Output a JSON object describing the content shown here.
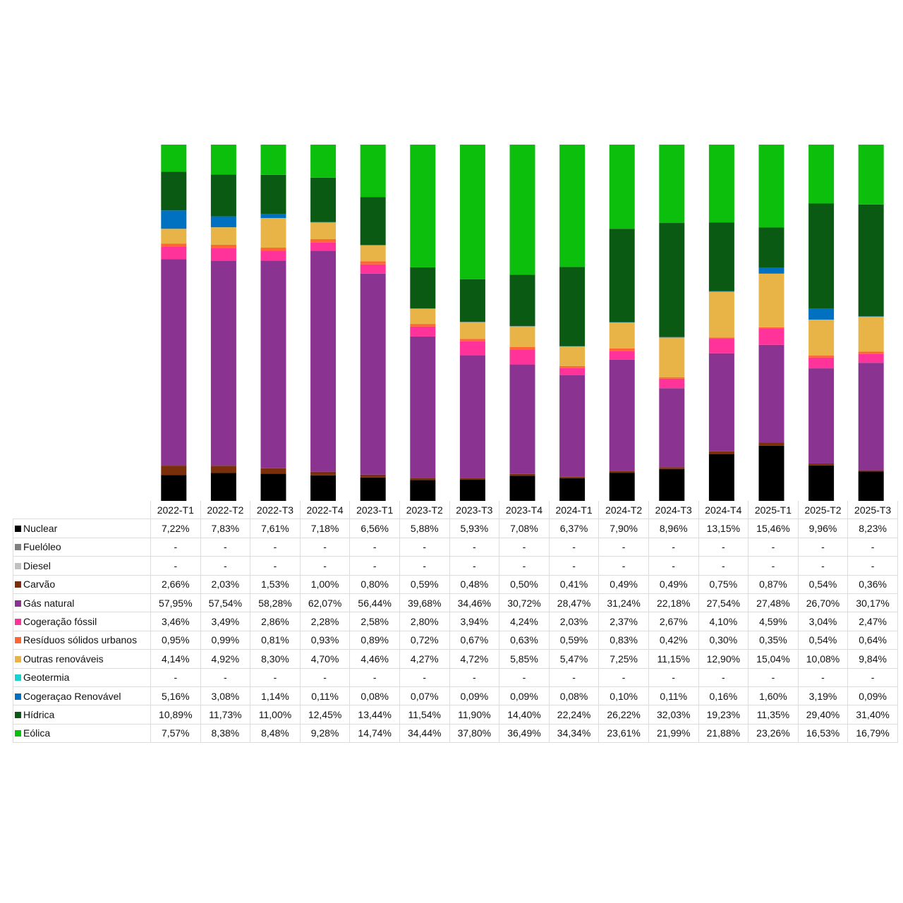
{
  "chart_data": {
    "type": "bar",
    "stacked": true,
    "normalized_100": true,
    "legend": "table-left",
    "categories": [
      "2022-T1",
      "2022-T2",
      "2022-T3",
      "2022-T4",
      "2023-T1",
      "2023-T2",
      "2023-T3",
      "2023-T4",
      "2024-T1",
      "2024-T2",
      "2024-T3",
      "2024-T4",
      "2025-T1",
      "2025-T2",
      "2025-T3"
    ],
    "missing_symbol": "-",
    "series": [
      {
        "name": "Nuclear",
        "color": "#000000",
        "values": [
          7.22,
          7.83,
          7.61,
          7.18,
          6.56,
          5.88,
          5.93,
          7.08,
          6.37,
          7.9,
          8.96,
          13.15,
          15.46,
          9.96,
          8.23
        ]
      },
      {
        "name": "Fuelóleo",
        "color": "#808080",
        "values": [
          null,
          null,
          null,
          null,
          null,
          null,
          null,
          null,
          null,
          null,
          null,
          null,
          null,
          null,
          null
        ]
      },
      {
        "name": "Diesel",
        "color": "#c0c0c0",
        "values": [
          null,
          null,
          null,
          null,
          null,
          null,
          null,
          null,
          null,
          null,
          null,
          null,
          null,
          null,
          null
        ]
      },
      {
        "name": "Carvão",
        "color": "#7a2e0a",
        "values": [
          2.66,
          2.03,
          1.53,
          1.0,
          0.8,
          0.59,
          0.48,
          0.5,
          0.41,
          0.49,
          0.49,
          0.75,
          0.87,
          0.54,
          0.36
        ]
      },
      {
        "name": "Gás natural",
        "color": "#8b3391",
        "values": [
          57.95,
          57.54,
          58.28,
          62.07,
          56.44,
          39.68,
          34.46,
          30.72,
          28.47,
          31.24,
          22.18,
          27.54,
          27.48,
          26.7,
          30.17
        ]
      },
      {
        "name": "Cogeração fóssil",
        "color": "#ff3399",
        "values": [
          3.46,
          3.49,
          2.86,
          2.28,
          2.58,
          2.8,
          3.94,
          4.24,
          2.03,
          2.37,
          2.67,
          4.1,
          4.59,
          3.04,
          2.47
        ]
      },
      {
        "name": "Resíduos sólidos urbanos",
        "color": "#ff6633",
        "values": [
          0.95,
          0.99,
          0.81,
          0.93,
          0.89,
          0.72,
          0.67,
          0.63,
          0.59,
          0.83,
          0.42,
          0.3,
          0.35,
          0.54,
          0.64
        ]
      },
      {
        "name": "Outras renováveis",
        "color": "#e8b447",
        "values": [
          4.14,
          4.92,
          8.3,
          4.7,
          4.46,
          4.27,
          4.72,
          5.85,
          5.47,
          7.25,
          11.15,
          12.9,
          15.04,
          10.08,
          9.84
        ]
      },
      {
        "name": "Geotermia",
        "color": "#19d1d1",
        "values": [
          null,
          null,
          null,
          null,
          null,
          null,
          null,
          null,
          null,
          null,
          null,
          null,
          null,
          null,
          null
        ]
      },
      {
        "name": "Cogeraçao Renovável",
        "color": "#0070c0",
        "values": [
          5.16,
          3.08,
          1.14,
          0.11,
          0.08,
          0.07,
          0.09,
          0.09,
          0.08,
          0.1,
          0.11,
          0.16,
          1.6,
          3.19,
          0.09
        ]
      },
      {
        "name": "Hídrica",
        "color": "#0a5a14",
        "values": [
          10.89,
          11.73,
          11.0,
          12.45,
          13.44,
          11.54,
          11.9,
          14.4,
          22.24,
          26.22,
          32.03,
          19.23,
          11.35,
          29.4,
          31.4
        ]
      },
      {
        "name": "Eólica",
        "color": "#0cbf0c",
        "values": [
          7.57,
          8.38,
          8.48,
          9.28,
          14.74,
          34.44,
          37.8,
          36.49,
          34.34,
          23.61,
          21.99,
          21.88,
          23.26,
          16.53,
          16.79
        ]
      }
    ]
  }
}
